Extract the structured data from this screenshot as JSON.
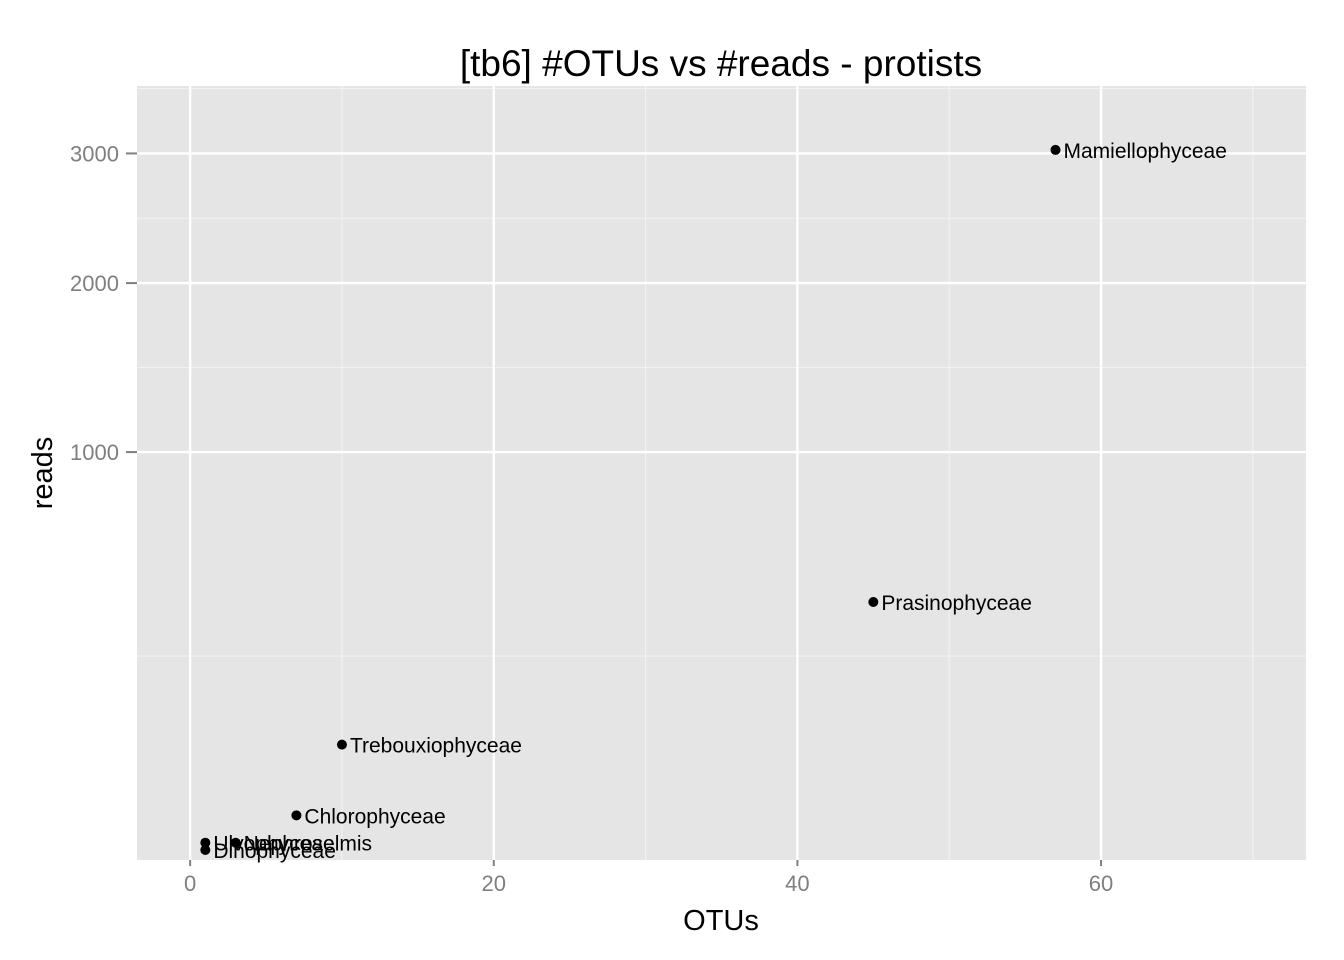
{
  "chart_data": {
    "type": "scatter",
    "title": "[tb6] #OTUs vs #reads - protists",
    "xlabel": "OTUs",
    "ylabel": "reads",
    "x_scale": "linear",
    "y_scale": "sqrt",
    "xlim": [
      -3.5,
      73.5
    ],
    "ylim": [
      0,
      3600
    ],
    "x_ticks": [
      0,
      20,
      40,
      60
    ],
    "x_tick_labels": [
      "0",
      "20",
      "40",
      "60"
    ],
    "y_ticks": [
      1000,
      2000,
      3000
    ],
    "y_tick_labels": [
      "1000",
      "2000",
      "3000"
    ],
    "grid": true,
    "legend": "none",
    "points": [
      {
        "label": "Mamiellophyceae",
        "x": 57,
        "y": 3030
      },
      {
        "label": "Prasinophyceae",
        "x": 45,
        "y": 400
      },
      {
        "label": "Trebouxiophyceae",
        "x": 10,
        "y": 80
      },
      {
        "label": "Chlorophyceae",
        "x": 7,
        "y": 12
      },
      {
        "label": "Ulvophyceae",
        "x": 1,
        "y": 1.8
      },
      {
        "label": "Nephroselmis",
        "x": 3,
        "y": 1.8
      },
      {
        "label": "Dinophyceae",
        "x": 1,
        "y": 0.6
      }
    ]
  }
}
